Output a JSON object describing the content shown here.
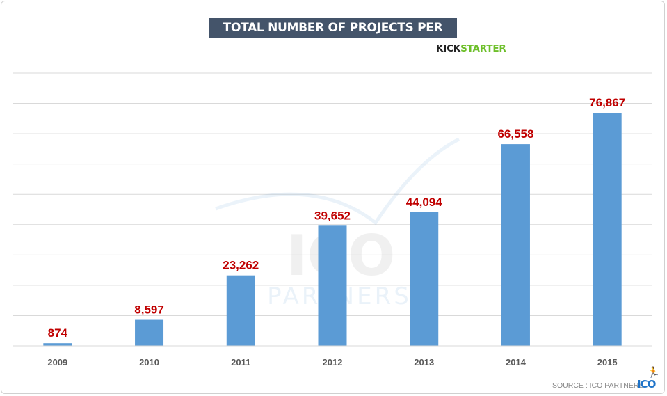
{
  "chart_data": {
    "type": "bar",
    "title": "TOTAL NUMBER OF PROJECTS PER YEAR",
    "categories": [
      "2009",
      "2010",
      "2011",
      "2012",
      "2013",
      "2014",
      "2015"
    ],
    "values": [
      874,
      8597,
      23262,
      39652,
      44094,
      66558,
      76867
    ],
    "data_labels": [
      "874",
      "8,597",
      "23,262",
      "39,652",
      "44,094",
      "66,558",
      "76,867"
    ],
    "xlabel": "",
    "ylabel": "",
    "ylim": [
      0,
      90000
    ],
    "grid": true,
    "y_tick_labels_shown": false,
    "bar_color": "#5b9bd5",
    "label_color": "#c00000"
  },
  "logo": {
    "kick": "KICK",
    "starter": "STARTER"
  },
  "source": "SOURCE : ICO PARTNERS",
  "source_logo": "ICO",
  "watermark": {
    "top": "ICO",
    "bottom": "PARTNERS"
  },
  "colors": {
    "title_bg": "#44546a",
    "kickstarter_green": "#6dbf2a",
    "ico_blue": "#1e73c8"
  }
}
